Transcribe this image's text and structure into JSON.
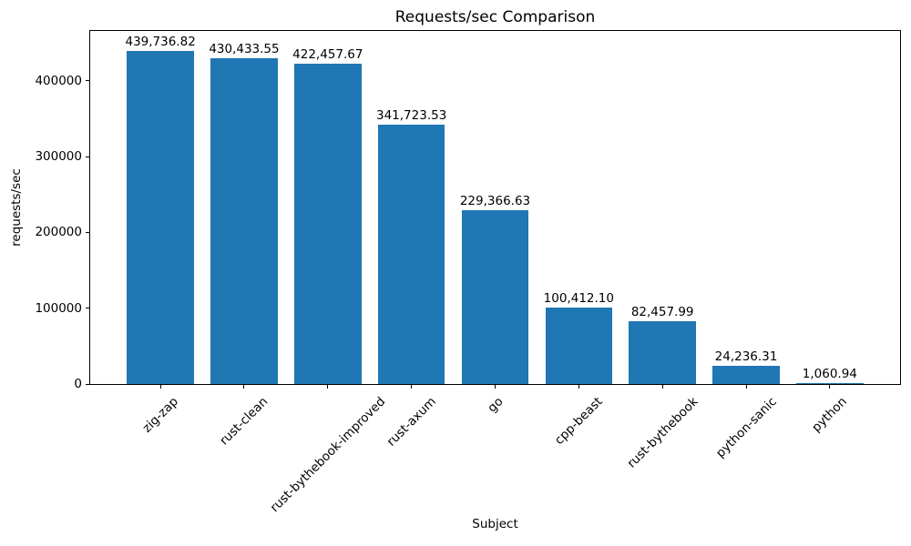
{
  "chart_data": {
    "type": "bar",
    "title": "Requests/sec Comparison",
    "xlabel": "Subject",
    "ylabel": "requests/sec",
    "categories": [
      "zig-zap",
      "rust-clean",
      "rust-bythebook-improved",
      "rust-axum",
      "go",
      "cpp-beast",
      "rust-bythebook",
      "python-sanic",
      "python"
    ],
    "values": [
      439736.82,
      430433.55,
      422457.67,
      341723.53,
      229366.63,
      100412.1,
      82457.99,
      24236.31,
      1060.94
    ],
    "value_labels": [
      "439,736.82",
      "430,433.55",
      "422,457.67",
      "341,723.53",
      "229,366.63",
      "100,412.10",
      "82,457.99",
      "24,236.31",
      "1,060.94"
    ],
    "yticks": [
      0,
      100000,
      200000,
      300000,
      400000
    ],
    "ytick_labels": [
      "0",
      "100000",
      "200000",
      "300000",
      "400000"
    ],
    "ylim": [
      0,
      466000
    ],
    "bar_color": "#1f77b4",
    "text_color": "#000000",
    "grid": false,
    "legend": null
  }
}
